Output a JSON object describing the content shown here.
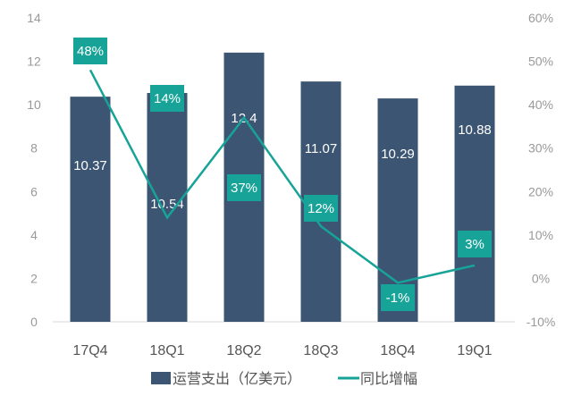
{
  "chart_data": {
    "type": "bar+line",
    "categories": [
      "17Q4",
      "18Q1",
      "18Q2",
      "18Q3",
      "18Q4",
      "19Q1"
    ],
    "series": [
      {
        "name": "运营支出（亿美元）",
        "type": "bar",
        "axis": "left",
        "values": [
          10.37,
          10.54,
          12.4,
          11.07,
          10.29,
          10.88
        ],
        "labels": [
          "10.37",
          "10.54",
          "12.4",
          "11.07",
          "10.29",
          "10.88"
        ],
        "color": "#3b5573"
      },
      {
        "name": "同比增幅",
        "type": "line",
        "axis": "right",
        "values": [
          48,
          14,
          37,
          12,
          -1,
          3
        ],
        "labels": [
          "48%",
          "14%",
          "37%",
          "12%",
          "-1%",
          "3%"
        ],
        "color": "#17a398"
      }
    ],
    "y_left": {
      "range": [
        0,
        14
      ],
      "ticks": [
        "0",
        "2",
        "4",
        "6",
        "8",
        "10",
        "12",
        "14"
      ]
    },
    "y_right": {
      "range": [
        -10,
        60
      ],
      "ticks": [
        "-10%",
        "0%",
        "10%",
        "20%",
        "30%",
        "40%",
        "50%",
        "60%"
      ]
    },
    "legend": {
      "placement": "bottom",
      "entries": [
        "运营支出（亿美元）",
        "同比增幅"
      ]
    },
    "grid": false
  }
}
